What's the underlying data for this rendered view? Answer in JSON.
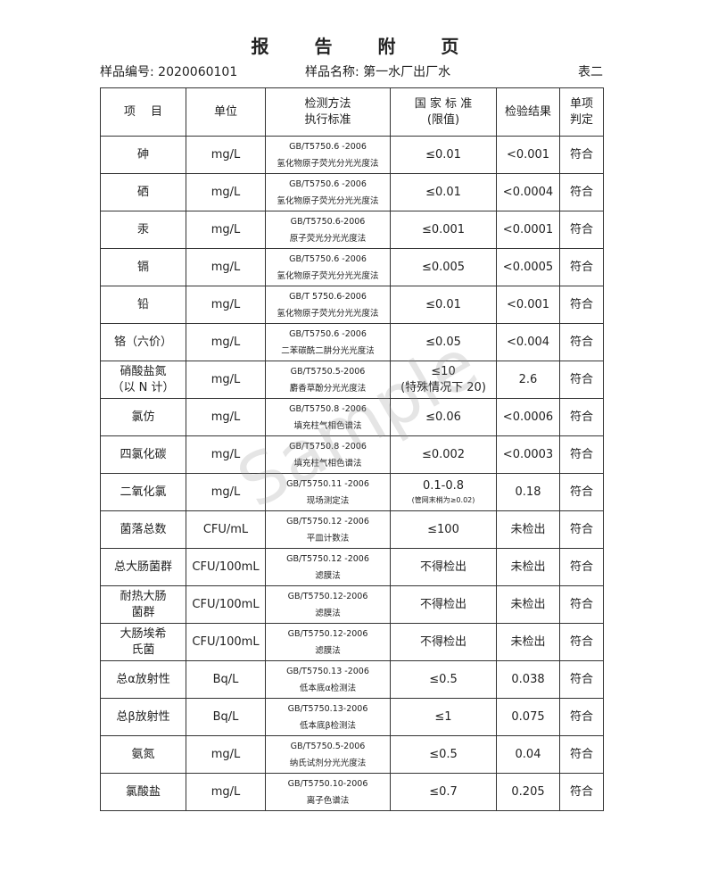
{
  "title": "报 告 附 页",
  "meta": {
    "sample_no": "样品编号: 2020060101",
    "sample_name": "样品名称: 第一水厂出厂水",
    "table_no": "表二"
  },
  "headers": [
    "项　 目",
    "单位",
    "检测方法\n执行标准",
    "国 家 标 准\n(限值)",
    "检验结果",
    "单项\n判定"
  ],
  "rows": [
    {
      "item": "砷",
      "unit": "mg/L",
      "std": "GB/T5750.6 -2006",
      "method": "氢化物原子荧光分光光度法",
      "limit": "≤0.01",
      "result": "<0.001",
      "judge": "符合"
    },
    {
      "item": "硒",
      "unit": "mg/L",
      "std": "GB/T5750.6 -2006",
      "method": "氢化物原子荧光分光光度法",
      "limit": "≤0.01",
      "result": "<0.0004",
      "judge": "符合"
    },
    {
      "item": "汞",
      "unit": "mg/L",
      "std": "GB/T5750.6-2006",
      "method": "原子荧光分光光度法",
      "limit": "≤0.001",
      "result": "<0.0001",
      "judge": "符合"
    },
    {
      "item": "镉",
      "unit": "mg/L",
      "std": "GB/T5750.6 -2006",
      "method": "氢化物原子荧光分光光度法",
      "limit": "≤0.005",
      "result": "<0.0005",
      "judge": "符合"
    },
    {
      "item": "铅",
      "unit": "mg/L",
      "std": "GB/T 5750.6-2006",
      "method": "氢化物原子荧光分光光度法",
      "limit": "≤0.01",
      "result": "<0.001",
      "judge": "符合"
    },
    {
      "item": "铬（六价）",
      "unit": "mg/L",
      "std": "GB/T5750.6 -2006",
      "method": "二苯碳酰二肼分光光度法",
      "limit": "≤0.05",
      "result": "<0.004",
      "judge": "符合"
    },
    {
      "item": "硝酸盐氮\n（以 N 计）",
      "unit": "mg/L",
      "std": "GB/T5750.5-2006",
      "method": "麝香草酚分光光度法",
      "limit": "≤10\n(特殊情况下 20)",
      "result": "2.6",
      "judge": "符合"
    },
    {
      "item": "氯仿",
      "unit": "mg/L",
      "std": "GB/T5750.8 -2006",
      "method": "填充柱气相色谱法",
      "limit": "≤0.06",
      "result": "<0.0006",
      "judge": "符合"
    },
    {
      "item": "四氯化碳",
      "unit": "mg/L",
      "std": "GB/T5750.8 -2006",
      "method": "填充柱气相色谱法",
      "limit": "≤0.002",
      "result": "<0.0003",
      "judge": "符合"
    },
    {
      "item": "二氧化氯",
      "unit": "mg/L",
      "std": "GB/T5750.11 -2006",
      "method": "现场测定法",
      "limit": "0.1-0.8",
      "limit_note": "(管网末梢为≥0.02)",
      "result": "0.18",
      "judge": "符合"
    },
    {
      "item": "菌落总数",
      "unit": "CFU/mL",
      "std": "GB/T5750.12 -2006",
      "method": "平皿计数法",
      "limit": "≤100",
      "result": "未检出",
      "judge": "符合"
    },
    {
      "item": "总大肠菌群",
      "unit": "CFU/100mL",
      "std": "GB/T5750.12 -2006",
      "method": "滤膜法",
      "limit": "不得检出",
      "result": "未检出",
      "judge": "符合"
    },
    {
      "item": "耐热大肠\n菌群",
      "unit": "CFU/100mL",
      "std": "GB/T5750.12-2006",
      "method": "滤膜法",
      "limit": "不得检出",
      "result": "未检出",
      "judge": "符合"
    },
    {
      "item": "大肠埃希\n氏菌",
      "unit": "CFU/100mL",
      "std": "GB/T5750.12-2006",
      "method": "滤膜法",
      "limit": "不得检出",
      "result": "未检出",
      "judge": "符合"
    },
    {
      "item": "总α放射性",
      "unit": "Bq/L",
      "std": "GB/T5750.13 -2006",
      "method": "低本底α检测法",
      "limit": "≤0.5",
      "result": "0.038",
      "judge": "符合"
    },
    {
      "item": "总β放射性",
      "unit": "Bq/L",
      "std": "GB/T5750.13-2006",
      "method": "低本底β检测法",
      "limit": "≤1",
      "result": "0.075",
      "judge": "符合"
    },
    {
      "item": "氨氮",
      "unit": "mg/L",
      "std": "GB/T5750.5-2006",
      "method": "纳氏试剂分光光度法",
      "limit": "≤0.5",
      "result": "0.04",
      "judge": "符合"
    },
    {
      "item": "氯酸盐",
      "unit": "mg/L",
      "std": "GB/T5750.10-2006",
      "method": "离子色谱法",
      "limit": "≤0.7",
      "result": "0.205",
      "judge": "符合"
    }
  ],
  "watermark": "Sample"
}
